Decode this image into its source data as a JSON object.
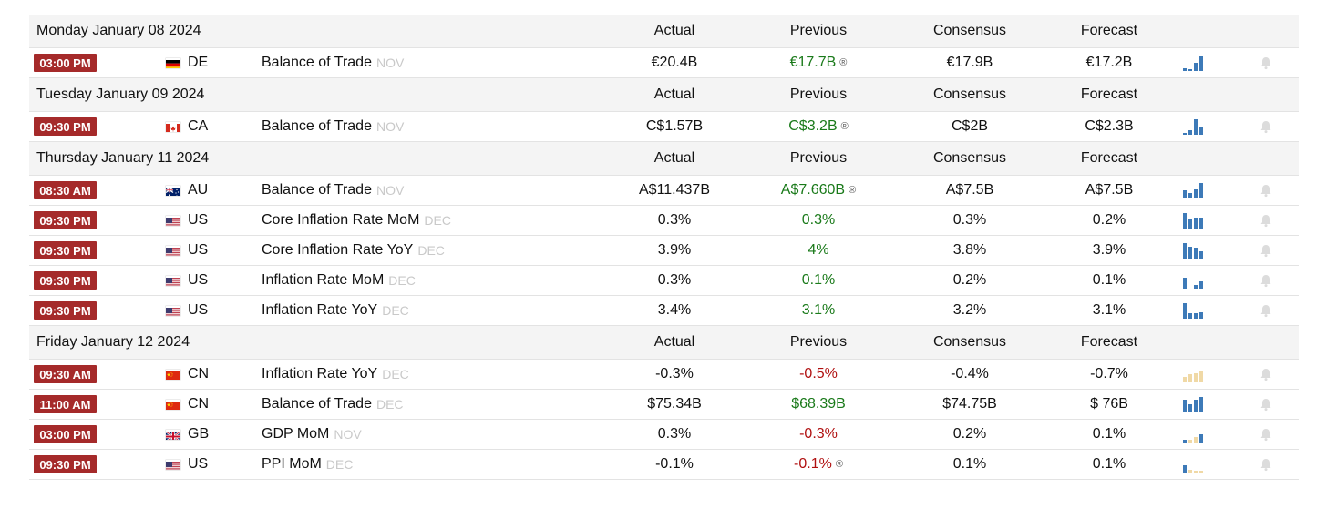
{
  "colors": {
    "time_badge": "#a52a2a",
    "positive": "#1a7a1a",
    "negative": "#b01010",
    "spark_blue": "#3d7ab8",
    "spark_tan": "#f0d9a6",
    "reference": "#c9c9c9"
  },
  "groups": [
    {
      "date": "Monday January 08 2024",
      "headers": {
        "actual": "Actual",
        "previous": "Previous",
        "consensus": "Consensus",
        "forecast": "Forecast"
      },
      "events": [
        {
          "time": "03:00 PM",
          "flag": "de",
          "country": "DE",
          "event": "Balance of Trade",
          "reference": "NOV",
          "actual": "€20.4B",
          "previous": "€17.7B",
          "previous_trend": "pos",
          "previous_revised": true,
          "consensus": "€17.9B",
          "forecast": "€17.2B",
          "spark_color": "blue",
          "spark": [
            0.2,
            0.1,
            0.5,
            0.95
          ]
        }
      ]
    },
    {
      "date": "Tuesday January 09 2024",
      "headers": {
        "actual": "Actual",
        "previous": "Previous",
        "consensus": "Consensus",
        "forecast": "Forecast"
      },
      "events": [
        {
          "time": "09:30 PM",
          "flag": "ca",
          "country": "CA",
          "event": "Balance of Trade",
          "reference": "NOV",
          "actual": "C$1.57B",
          "previous": "C$3.2B",
          "previous_trend": "pos",
          "previous_revised": true,
          "consensus": "C$2B",
          "forecast": "C$2.3B",
          "spark_color": "blue",
          "spark": [
            0.1,
            0.3,
            1.0,
            0.45
          ]
        }
      ]
    },
    {
      "date": "Thursday January 11 2024",
      "headers": {
        "actual": "Actual",
        "previous": "Previous",
        "consensus": "Consensus",
        "forecast": "Forecast"
      },
      "events": [
        {
          "time": "08:30 AM",
          "flag": "au",
          "country": "AU",
          "event": "Balance of Trade",
          "reference": "NOV",
          "actual": "A$11.437B",
          "previous": "A$7.660B",
          "previous_trend": "pos",
          "previous_revised": true,
          "consensus": "A$7.5B",
          "forecast": "A$7.5B",
          "spark_color": "blue",
          "spark": [
            0.55,
            0.35,
            0.6,
            1.0
          ]
        },
        {
          "time": "09:30 PM",
          "flag": "us",
          "country": "US",
          "event": "Core Inflation Rate MoM",
          "reference": "DEC",
          "actual": "0.3%",
          "previous": "0.3%",
          "previous_trend": "pos",
          "previous_revised": false,
          "consensus": "0.3%",
          "forecast": "0.2%",
          "spark_color": "blue",
          "spark": [
            1.0,
            0.6,
            0.7,
            0.7
          ]
        },
        {
          "time": "09:30 PM",
          "flag": "us",
          "country": "US",
          "event": "Core Inflation Rate YoY",
          "reference": "DEC",
          "actual": "3.9%",
          "previous": "4%",
          "previous_trend": "pos",
          "previous_revised": false,
          "consensus": "3.8%",
          "forecast": "3.9%",
          "spark_color": "blue",
          "spark": [
            1.0,
            0.75,
            0.7,
            0.45
          ]
        },
        {
          "time": "09:30 PM",
          "flag": "us",
          "country": "US",
          "event": "Inflation Rate MoM",
          "reference": "DEC",
          "actual": "0.3%",
          "previous": "0.1%",
          "previous_trend": "pos",
          "previous_revised": false,
          "consensus": "0.2%",
          "forecast": "0.1%",
          "spark_color": "blue",
          "spark": [
            0.7,
            0,
            0.25,
            0.45
          ]
        },
        {
          "time": "09:30 PM",
          "flag": "us",
          "country": "US",
          "event": "Inflation Rate YoY",
          "reference": "DEC",
          "actual": "3.4%",
          "previous": "3.1%",
          "previous_trend": "pos",
          "previous_revised": false,
          "consensus": "3.2%",
          "forecast": "3.1%",
          "spark_color": "blue",
          "spark": [
            1.0,
            0.35,
            0.35,
            0.4
          ]
        }
      ]
    },
    {
      "date": "Friday January 12 2024",
      "headers": {
        "actual": "Actual",
        "previous": "Previous",
        "consensus": "Consensus",
        "forecast": "Forecast"
      },
      "events": [
        {
          "time": "09:30 AM",
          "flag": "cn",
          "country": "CN",
          "event": "Inflation Rate YoY",
          "reference": "DEC",
          "actual": "-0.3%",
          "previous": "-0.5%",
          "previous_trend": "neg",
          "previous_revised": false,
          "consensus": "-0.4%",
          "forecast": "-0.7%",
          "spark_color": "tan",
          "spark": [
            0.35,
            0.5,
            0.6,
            0.75
          ]
        },
        {
          "time": "11:00 AM",
          "flag": "cn",
          "country": "CN",
          "event": "Balance of Trade",
          "reference": "DEC",
          "actual": "$75.34B",
          "previous": "$68.39B",
          "previous_trend": "pos",
          "previous_revised": false,
          "consensus": "$74.75B",
          "forecast": "$ 76B",
          "spark_color": "blue",
          "spark": [
            0.85,
            0.55,
            0.8,
            1.0
          ]
        },
        {
          "time": "03:00 PM",
          "flag": "gb",
          "country": "GB",
          "event": "GDP MoM",
          "reference": "NOV",
          "actual": "0.3%",
          "previous": "-0.3%",
          "previous_trend": "neg",
          "previous_revised": false,
          "consensus": "0.2%",
          "forecast": "0.1%",
          "spark_color": "mixed",
          "spark": [
            0.15,
            0.15,
            0.35,
            0.55
          ]
        },
        {
          "time": "09:30 PM",
          "flag": "us",
          "country": "US",
          "event": "PPI MoM",
          "reference": "DEC",
          "actual": "-0.1%",
          "previous": "-0.1%",
          "previous_trend": "neg",
          "previous_revised": true,
          "consensus": "0.1%",
          "forecast": "0.1%",
          "spark_color": "mixed",
          "spark": [
            0.45,
            0.2,
            0.1,
            0.1
          ]
        }
      ]
    }
  ],
  "icons": {
    "revised": "revised-icon",
    "alert": "bell-icon"
  },
  "revised_mark": "®"
}
